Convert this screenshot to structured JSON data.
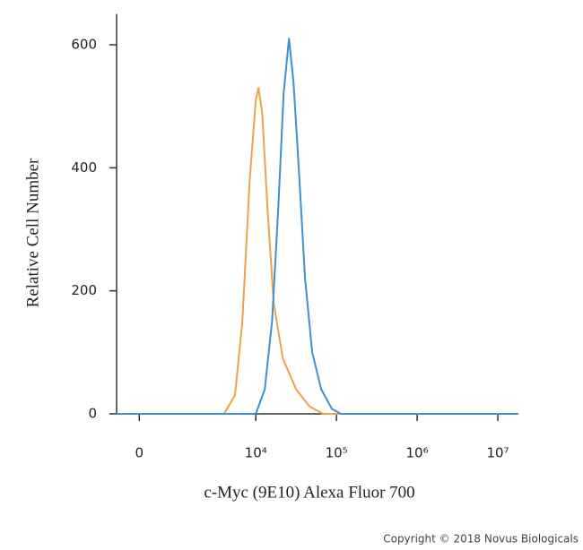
{
  "chart_data": {
    "type": "line",
    "xlabel": "c-Myc (9E10) Alexa Fluor 700",
    "ylabel": "Relative Cell Number",
    "xscale": "biexponential",
    "xlim": [
      -500,
      18000000
    ],
    "xticks": [
      0,
      {
        "value": 10000,
        "label": "10⁴"
      },
      {
        "value": 100000,
        "label": "10⁵"
      },
      {
        "value": 1000000,
        "label": "10⁶"
      },
      {
        "value": 10000000,
        "label": "10⁷"
      }
    ],
    "ylim": [
      0,
      650
    ],
    "yticks": [
      0,
      200,
      400,
      600
    ],
    "series": [
      {
        "color": "#f0a04b",
        "x": [
          -500,
          4000,
          5500,
          6800,
          8400,
          10000,
          10800,
          12000,
          14000,
          16700,
          21600,
          31600,
          46400,
          68000,
          18000000
        ],
        "values": [
          0,
          0,
          30,
          150,
          380,
          510,
          530,
          490,
          330,
          180,
          90,
          40,
          12,
          0,
          0
        ]
      },
      {
        "color": "#3d8fd6",
        "x": [
          -500,
          10000,
          12900,
          15900,
          18900,
          22100,
          25800,
          29300,
          34100,
          40800,
          50100,
          64700,
          87900,
          113600,
          18000000
        ],
        "values": [
          0,
          0,
          40,
          150,
          330,
          520,
          610,
          540,
          400,
          220,
          100,
          40,
          8,
          0,
          0
        ]
      }
    ],
    "copyright": "Copyright © 2018 Novus Biologicals"
  }
}
